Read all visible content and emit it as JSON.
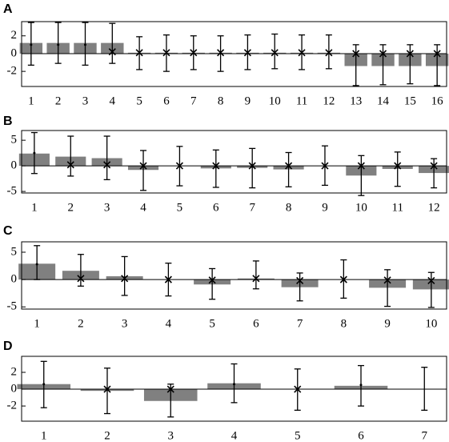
{
  "chart_data": [
    {
      "type": "bar",
      "label": "A",
      "categories": [
        "1",
        "2",
        "3",
        "4",
        "5",
        "6",
        "7",
        "8",
        "9",
        "10",
        "11",
        "12",
        "13",
        "14",
        "15",
        "16"
      ],
      "bars": {
        "color": "#808080",
        "values": [
          1.2,
          1.2,
          1.2,
          1.2,
          0.1,
          0.1,
          0.1,
          0.1,
          0.1,
          0.1,
          0.1,
          0.1,
          -1.4,
          -1.4,
          -1.4,
          -1.4
        ]
      },
      "points": {
        "values": [
          1.0,
          1.0,
          1.0,
          0.2,
          0.1,
          0.1,
          0.1,
          0.1,
          0.1,
          0.1,
          0.1,
          0.1,
          0,
          0,
          0,
          0
        ],
        "lower": [
          -1.3,
          -1.1,
          -1.3,
          -1.1,
          -1.8,
          -2.0,
          -1.8,
          -2.0,
          -1.8,
          -1.7,
          -1.8,
          -1.7,
          -3.6,
          -3.5,
          -3.4,
          -3.6
        ],
        "upper": [
          3.5,
          3.5,
          3.5,
          3.4,
          1.9,
          2.1,
          2.0,
          2.0,
          2.1,
          2.2,
          2.1,
          2.1,
          1.0,
          1.0,
          1.0,
          1.0
        ],
        "markers": [
          "dot",
          "dot",
          "dot",
          "x",
          "x",
          "x",
          "x",
          "x",
          "x",
          "x",
          "x",
          "x",
          "x",
          "x",
          "x",
          "x"
        ]
      },
      "ylim": [
        -3.7,
        3.6
      ],
      "yticks": [
        -2,
        0,
        2
      ]
    },
    {
      "type": "bar",
      "label": "B",
      "categories": [
        "1",
        "2",
        "3",
        "4",
        "5",
        "6",
        "7",
        "8",
        "9",
        "10",
        "11",
        "12"
      ],
      "bars": {
        "color": "#808080",
        "values": [
          2.4,
          1.8,
          1.5,
          -0.8,
          0,
          -0.5,
          -0.4,
          -0.7,
          0,
          -1.9,
          -0.6,
          -1.4
        ]
      },
      "points": {
        "values": [
          2.5,
          0.2,
          0.2,
          0,
          0,
          0,
          0,
          0,
          0,
          0,
          0,
          0
        ],
        "lower": [
          -1.5,
          -2.0,
          -2.7,
          -4.8,
          -3.9,
          -4.2,
          -4.3,
          -4.1,
          -3.8,
          -5.8,
          -4.0,
          -4.3
        ],
        "upper": [
          6.5,
          5.8,
          5.8,
          3.0,
          3.8,
          3.1,
          3.4,
          2.6,
          3.9,
          2.0,
          2.7,
          1.4
        ],
        "markers": [
          "dot",
          "x",
          "x",
          "x",
          "x",
          "x",
          "x",
          "x",
          "x",
          "x",
          "x",
          "x"
        ]
      },
      "ylim": [
        -5.3,
        6.9
      ],
      "yticks": [
        -5,
        0,
        5
      ]
    },
    {
      "type": "bar",
      "label": "C",
      "categories": [
        "1",
        "2",
        "3",
        "4",
        "5",
        "6",
        "7",
        "8",
        "9",
        "10"
      ],
      "bars": {
        "color": "#808080",
        "values": [
          2.9,
          1.6,
          0.6,
          0,
          -0.9,
          0.2,
          -1.4,
          0,
          -1.5,
          -1.8
        ]
      },
      "points": {
        "values": [
          2.8,
          0.2,
          0.2,
          0,
          -0.1,
          0.2,
          -0.2,
          0,
          -0.1,
          -0.2
        ],
        "lower": [
          0,
          -1.2,
          -2.9,
          -3.0,
          -3.6,
          -1.7,
          -3.9,
          -3.4,
          -4.9,
          -5.1
        ],
        "upper": [
          6.2,
          4.6,
          4.2,
          3.0,
          2.0,
          3.4,
          1.2,
          3.6,
          1.8,
          1.3
        ],
        "markers": [
          "dot",
          "x",
          "x",
          "x",
          "x",
          "x",
          "x",
          "x",
          "x",
          "x"
        ]
      },
      "ylim": [
        -5.4,
        6.9
      ],
      "yticks": [
        -5,
        0,
        5
      ]
    },
    {
      "type": "bar",
      "label": "D",
      "categories": [
        "1",
        "2",
        "3",
        "4",
        "5",
        "6",
        "7"
      ],
      "bars": {
        "color": "#808080",
        "values": [
          0.6,
          -0.2,
          -1.4,
          0.7,
          0,
          0.4,
          0
        ]
      },
      "points": {
        "values": [
          0.6,
          0,
          0,
          0.6,
          0,
          0.5,
          0
        ],
        "lower": [
          -2.2,
          -2.9,
          -3.3,
          -1.6,
          -2.5,
          -2.0,
          -2.5
        ],
        "upper": [
          3.3,
          2.5,
          0.6,
          3.0,
          2.4,
          2.8,
          2.6
        ],
        "markers": [
          "dot",
          "x",
          "x",
          "dot",
          "x",
          "dot",
          null
        ]
      },
      "ylim": [
        -3.8,
        3.9
      ],
      "yticks": [
        -2,
        0,
        2
      ]
    }
  ]
}
